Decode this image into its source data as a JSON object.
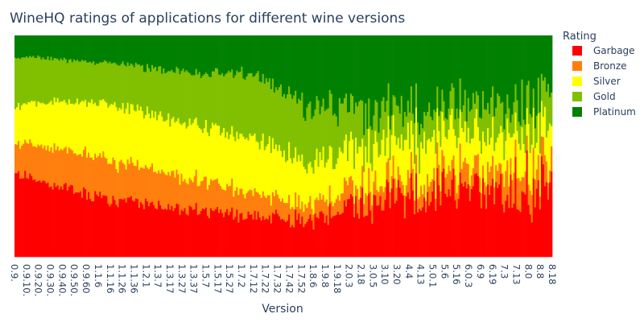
{
  "chart_data": {
    "type": "bar",
    "stacked": "normalized",
    "title": "WineHQ ratings of applications for different wine versions",
    "xlabel": "Version",
    "ylabel": "",
    "grid": false,
    "legend": {
      "title": "Rating",
      "placement": "right",
      "entries": [
        "Garbage",
        "Bronze",
        "Silver",
        "Gold",
        "Platinum"
      ]
    },
    "colors": {
      "Garbage": "#ff0000",
      "Bronze": "#ff7f0e",
      "Silver": "#ffff00",
      "Gold": "#80c000",
      "Platinum": "#008000"
    },
    "x_tick_labels": [
      "0.9.",
      "0.9.10.",
      "0.9.20.",
      "0.9.30.",
      "0.9.40.",
      "0.9.50.",
      "0.9.60",
      "1.1.6",
      "1.1.16",
      "1.1.26",
      "1.1.36",
      "1.2.1",
      "1.3.7",
      "1.3.17",
      "1.3.27",
      "1.3.37",
      "1.5.7",
      "1.5.17",
      "1.5.27",
      "1.7.2",
      "1.7.12",
      "1.7.22",
      "1.7.32",
      "1.7.42",
      "1.7.52",
      "1.8.6",
      "1.9.8",
      "1.9.18",
      "2.0.3",
      "2.18",
      "3.0.5",
      "3.10",
      "3.20",
      "4.4",
      "4.13",
      "5.0.1",
      "5.6",
      "5.16",
      "6.0.3",
      "6.9",
      "6.19",
      "7.3",
      "7.13",
      "8.0",
      "8.8",
      "8.18"
    ],
    "bar_count": 330,
    "trend_profile": [
      {
        "pos": 0.0,
        "Garbage": 0.38,
        "Bronze": 0.14,
        "Silver": 0.16,
        "Gold": 0.22,
        "Platinum": 0.1
      },
      {
        "pos": 0.05,
        "Garbage": 0.34,
        "Bronze": 0.16,
        "Silver": 0.2,
        "Gold": 0.2,
        "Platinum": 0.1
      },
      {
        "pos": 0.15,
        "Garbage": 0.27,
        "Bronze": 0.18,
        "Silver": 0.25,
        "Gold": 0.18,
        "Platinum": 0.12
      },
      {
        "pos": 0.3,
        "Garbage": 0.22,
        "Bronze": 0.15,
        "Silver": 0.25,
        "Gold": 0.22,
        "Platinum": 0.16
      },
      {
        "pos": 0.45,
        "Garbage": 0.18,
        "Bronze": 0.1,
        "Silver": 0.24,
        "Gold": 0.3,
        "Platinum": 0.18
      },
      {
        "pos": 0.55,
        "Garbage": 0.16,
        "Bronze": 0.07,
        "Silver": 0.19,
        "Gold": 0.26,
        "Platinum": 0.32
      },
      {
        "pos": 0.65,
        "Garbage": 0.24,
        "Bronze": 0.08,
        "Silver": 0.17,
        "Gold": 0.16,
        "Platinum": 0.35
      },
      {
        "pos": 0.8,
        "Garbage": 0.3,
        "Bronze": 0.09,
        "Silver": 0.16,
        "Gold": 0.13,
        "Platinum": 0.32
      },
      {
        "pos": 1.0,
        "Garbage": 0.3,
        "Bronze": 0.1,
        "Silver": 0.16,
        "Gold": 0.14,
        "Platinum": 0.3
      }
    ],
    "noise_by_position": [
      {
        "pos": 0.0,
        "amount": 0.04
      },
      {
        "pos": 0.5,
        "amount": 0.08
      },
      {
        "pos": 0.65,
        "amount": 0.18
      },
      {
        "pos": 1.0,
        "amount": 0.22
      }
    ],
    "ylim": [
      0,
      1
    ]
  }
}
